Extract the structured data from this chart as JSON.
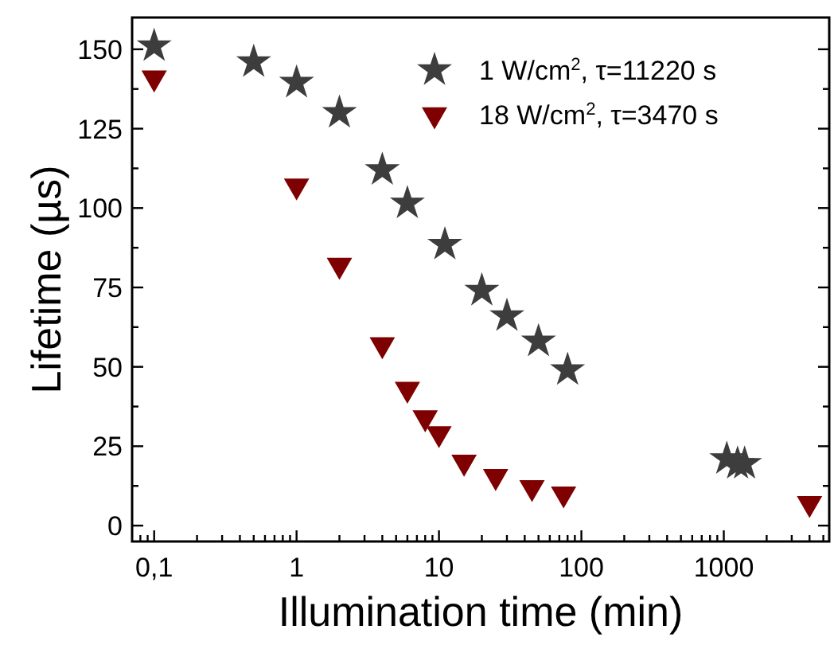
{
  "chart_data": {
    "type": "scatter",
    "xlabel": "Illumination time (min)",
    "ylabel": "Lifetime (µs)",
    "log": "x",
    "xlim": [
      0.07,
      5500
    ],
    "ylim": [
      -5,
      160
    ],
    "xticks": [
      {
        "value": 0.08,
        "label": null
      },
      {
        "value": 0.09,
        "label": null
      },
      {
        "value": 0.1,
        "label": "0,1"
      },
      {
        "value": 0.2,
        "label": null
      },
      {
        "value": 0.3,
        "label": null
      },
      {
        "value": 0.4,
        "label": null
      },
      {
        "value": 0.5,
        "label": null
      },
      {
        "value": 0.6,
        "label": null
      },
      {
        "value": 0.7,
        "label": null
      },
      {
        "value": 0.8,
        "label": null
      },
      {
        "value": 0.9,
        "label": null
      },
      1,
      {
        "value": 2,
        "label": null
      },
      {
        "value": 3,
        "label": null
      },
      {
        "value": 4,
        "label": null
      },
      {
        "value": 5,
        "label": null
      },
      {
        "value": 6,
        "label": null
      },
      {
        "value": 7,
        "label": null
      },
      {
        "value": 8,
        "label": null
      },
      {
        "value": 9,
        "label": null
      },
      10,
      {
        "value": 20,
        "label": null
      },
      {
        "value": 30,
        "label": null
      },
      {
        "value": 40,
        "label": null
      },
      {
        "value": 50,
        "label": null
      },
      {
        "value": 60,
        "label": null
      },
      {
        "value": 70,
        "label": null
      },
      {
        "value": 80,
        "label": null
      },
      {
        "value": 90,
        "label": null
      },
      100,
      {
        "value": 200,
        "label": null
      },
      {
        "value": 300,
        "label": null
      },
      {
        "value": 400,
        "label": null
      },
      {
        "value": 500,
        "label": null
      },
      {
        "value": 600,
        "label": null
      },
      {
        "value": 700,
        "label": null
      },
      {
        "value": 800,
        "label": null
      },
      {
        "value": 900,
        "label": null
      },
      1000,
      {
        "value": 2000,
        "label": null
      },
      {
        "value": 3000,
        "label": null
      },
      {
        "value": 4000,
        "label": null
      },
      {
        "value": 5000,
        "label": null
      }
    ],
    "yticks": [
      0,
      {
        "value": 12.5,
        "label": null
      },
      25,
      {
        "value": 37.5,
        "label": null
      },
      50,
      {
        "value": 62.5,
        "label": null
      },
      75,
      {
        "value": 87.5,
        "label": null
      },
      100,
      {
        "value": 112.5,
        "label": null
      },
      125,
      {
        "value": 137.5,
        "label": null
      },
      150
    ],
    "grid": false,
    "legend": "top right",
    "series": [
      {
        "name": "1 W/cm$^{2}$, τ=11220 s",
        "color": "#3d3d3d",
        "marker": "star",
        "x": [
          0.1,
          0.5,
          1,
          2,
          4,
          6,
          11,
          20,
          30,
          50,
          80,
          1050,
          1250,
          1400
        ],
        "values": [
          151,
          146,
          139.5,
          130,
          112,
          101.5,
          88.5,
          74,
          66,
          58,
          49,
          21,
          19.5,
          19.5
        ]
      },
      {
        "name": "18 W/cm$^{2}$, τ=3470 s",
        "color": "#7f0000",
        "marker": "triangle",
        "x": [
          0.1,
          1,
          2,
          4,
          6,
          8,
          10,
          15,
          25,
          45,
          75,
          4000
        ],
        "values": [
          141,
          107,
          82,
          57,
          43,
          34,
          29,
          20,
          15.5,
          12,
          10,
          7
        ]
      }
    ]
  }
}
